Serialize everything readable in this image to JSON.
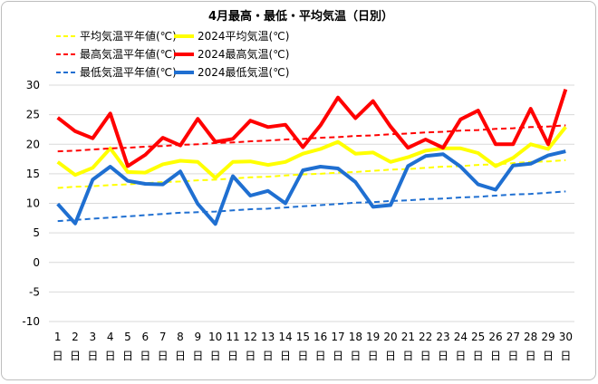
{
  "chart_data": {
    "type": "line",
    "title": "4月最高・最低・平均気温（日別）",
    "x": [
      1,
      2,
      3,
      4,
      5,
      6,
      7,
      8,
      9,
      10,
      11,
      12,
      13,
      14,
      15,
      16,
      17,
      18,
      19,
      20,
      21,
      22,
      23,
      24,
      25,
      26,
      27,
      28,
      29,
      30
    ],
    "x_suffix": "日",
    "ylim": [
      -10,
      30
    ],
    "yticks": [
      -10,
      -5,
      0,
      5,
      10,
      15,
      20,
      25,
      30
    ],
    "grid": true,
    "legend_position": "top-left",
    "series": [
      {
        "name": "平均気温平年値(℃)",
        "style": "dashed",
        "color": "#ffff00",
        "values": [
          12.6,
          12.8,
          12.9,
          13.1,
          13.2,
          13.4,
          13.6,
          13.7,
          13.9,
          14.0,
          14.2,
          14.4,
          14.5,
          14.7,
          14.9,
          15.0,
          15.2,
          15.3,
          15.5,
          15.7,
          15.8,
          16.0,
          16.2,
          16.3,
          16.5,
          16.6,
          16.8,
          17.0,
          17.1,
          17.3
        ]
      },
      {
        "name": "2024平均気温(℃)",
        "style": "solid",
        "color": "#ffff00",
        "values": [
          17.0,
          14.8,
          16.0,
          19.3,
          15.3,
          15.2,
          16.6,
          17.2,
          17.0,
          14.3,
          17.0,
          17.1,
          16.5,
          17.0,
          18.4,
          19.2,
          20.4,
          18.4,
          18.6,
          17.0,
          17.8,
          18.9,
          19.3,
          19.3,
          18.5,
          16.3,
          17.7,
          20.0,
          19.2,
          22.9
        ]
      },
      {
        "name": "最高気温平年値(℃)",
        "style": "dashed",
        "color": "#ff0000",
        "values": [
          18.8,
          18.9,
          19.1,
          19.3,
          19.4,
          19.6,
          19.7,
          19.9,
          20.0,
          20.2,
          20.3,
          20.5,
          20.6,
          20.8,
          20.9,
          21.1,
          21.2,
          21.4,
          21.5,
          21.7,
          21.8,
          22.0,
          22.1,
          22.3,
          22.4,
          22.6,
          22.7,
          22.9,
          23.0,
          23.2
        ]
      },
      {
        "name": "2024最高気温(℃)",
        "style": "solid",
        "color": "#ff0000",
        "values": [
          24.5,
          22.2,
          21.0,
          25.2,
          16.3,
          18.2,
          21.1,
          19.8,
          24.3,
          20.4,
          20.9,
          24.0,
          22.9,
          23.3,
          19.5,
          23.2,
          27.9,
          24.4,
          27.3,
          23.0,
          19.4,
          20.8,
          19.4,
          24.2,
          25.7,
          20.0,
          20.0,
          26.0,
          20.0,
          29.3
        ]
      },
      {
        "name": "最低気温平年値(℃)",
        "style": "dashed",
        "color": "#1f6fd1",
        "values": [
          7.0,
          7.2,
          7.4,
          7.6,
          7.8,
          8.0,
          8.2,
          8.4,
          8.5,
          8.6,
          8.8,
          9.0,
          9.1,
          9.3,
          9.5,
          9.7,
          9.9,
          10.1,
          10.2,
          10.4,
          10.5,
          10.7,
          10.8,
          11.0,
          11.1,
          11.3,
          11.5,
          11.6,
          11.8,
          12.0
        ]
      },
      {
        "name": "2024最低気温(℃)",
        "style": "solid",
        "color": "#1f6fd1",
        "values": [
          9.9,
          6.6,
          14.0,
          16.2,
          13.8,
          13.3,
          13.2,
          15.4,
          9.9,
          6.5,
          14.6,
          11.3,
          12.1,
          10.0,
          15.6,
          16.2,
          15.9,
          13.6,
          9.4,
          9.7,
          16.3,
          18.0,
          18.3,
          16.2,
          13.2,
          12.3,
          16.4,
          16.7,
          18.1,
          18.8
        ]
      }
    ]
  }
}
